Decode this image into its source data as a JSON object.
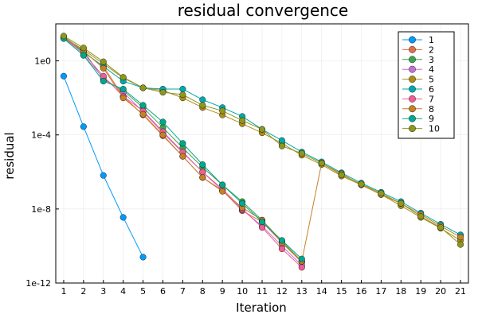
{
  "chart_data": {
    "type": "line",
    "title": "residual convergence",
    "xlabel": "Iteration",
    "ylabel": "residual",
    "yscale": "log",
    "xlim": [
      0.6,
      21.4
    ],
    "ylim": [
      1e-12,
      100.0
    ],
    "x_ticks": [
      "1",
      "2",
      "3",
      "4",
      "5",
      "6",
      "7",
      "8",
      "9",
      "10",
      "11",
      "12",
      "13",
      "14",
      "15",
      "16",
      "17",
      "18",
      "19",
      "20",
      "21"
    ],
    "y_ticks": [
      {
        "label": "1e-12",
        "value": 1e-12
      },
      {
        "label": "1e-8",
        "value": 1e-08
      },
      {
        "label": "1e-4",
        "value": 0.0001
      },
      {
        "label": "1e0",
        "value": 1
      }
    ],
    "grid": true,
    "legend_position": "top-right",
    "series": [
      {
        "name": "1",
        "color": "#009AFA",
        "x": [
          1,
          2,
          3,
          4,
          5
        ],
        "y": [
          0.15,
          0.00028,
          6.5e-07,
          3.5e-09,
          2.5e-11
        ]
      },
      {
        "name": "2",
        "color": "#E36F47",
        "x": [
          1,
          2,
          3,
          4,
          5,
          6,
          7,
          8,
          9,
          10,
          11,
          12,
          13
        ],
        "y": [
          18,
          3,
          0.5,
          0.012,
          0.0012,
          9e-05,
          7e-06,
          5e-07,
          1e-07,
          8e-09,
          2e-09,
          1.5e-10,
          1.3e-11
        ]
      },
      {
        "name": "3",
        "color": "#3EA44E",
        "x": [
          1,
          2,
          3,
          4,
          5,
          6,
          7,
          8,
          9,
          10,
          11,
          12,
          13
        ],
        "y": [
          20,
          3.5,
          0.1,
          0.025,
          0.003,
          0.00025,
          2e-05,
          1.8e-06,
          2e-07,
          2.5e-08,
          2.5e-09,
          1.8e-10,
          1.5e-11
        ]
      },
      {
        "name": "4",
        "color": "#C271D2",
        "x": [
          1,
          2,
          3,
          4,
          5,
          6,
          7,
          8,
          9,
          10,
          11,
          12,
          13
        ],
        "y": [
          17,
          2,
          0.12,
          0.02,
          0.0018,
          0.00013,
          1.1e-05,
          1e-06,
          1e-07,
          9e-09,
          1.2e-09,
          1e-10,
          9e-12
        ]
      },
      {
        "name": "5",
        "color": "#AC8D18",
        "x": [
          1,
          2,
          3,
          4,
          5,
          6,
          7,
          8,
          9,
          10,
          11,
          12,
          13,
          14,
          15,
          16,
          17,
          18,
          19,
          20,
          21
        ],
        "y": [
          18,
          4,
          0.7,
          0.12,
          0.035,
          0.025,
          0.01,
          0.003,
          0.0012,
          0.0004,
          0.00013,
          3.5e-05,
          8e-06,
          2.5e-06,
          6e-07,
          2e-07,
          6e-08,
          1.5e-08,
          3.5e-09,
          9e-10,
          2e-10
        ]
      },
      {
        "name": "6",
        "color": "#00A9AD",
        "x": [
          1,
          2,
          3,
          4,
          5,
          6,
          7,
          8,
          9,
          10,
          11,
          12,
          13,
          14,
          15,
          16,
          17,
          18,
          19,
          20,
          21
        ],
        "y": [
          17,
          3,
          0.5,
          0.08,
          0.035,
          0.03,
          0.03,
          0.008,
          0.003,
          0.001,
          0.0002,
          5e-05,
          1.2e-05,
          3.5e-06,
          9e-07,
          2.5e-07,
          8e-08,
          2.5e-08,
          6e-09,
          1.5e-09,
          4e-10
        ]
      },
      {
        "name": "7",
        "color": "#ED5E93",
        "x": [
          1,
          2,
          3,
          4,
          5,
          6,
          7,
          8,
          9,
          10,
          11,
          12,
          13
        ],
        "y": [
          19,
          2.5,
          0.15,
          0.012,
          0.002,
          0.00015,
          1.2e-05,
          1e-06,
          1.2e-07,
          1e-08,
          1e-09,
          7e-11,
          7e-12
        ]
      },
      {
        "name": "8",
        "color": "#C68125",
        "x": [
          1,
          2,
          3,
          4,
          5,
          6,
          7,
          8,
          9,
          10,
          11,
          12,
          13,
          14,
          15,
          16,
          17,
          18,
          19,
          20,
          21
        ],
        "y": [
          19,
          3.5,
          0.4,
          0.01,
          0.0013,
          0.0001,
          7e-06,
          5e-07,
          9e-08,
          1.2e-08,
          2.5e-09,
          1.5e-10,
          1.5e-11,
          3e-06,
          8e-07,
          2e-07,
          6e-08,
          2e-08,
          5e-09,
          1.2e-09,
          3e-10
        ]
      },
      {
        "name": "9",
        "color": "#00A98D",
        "x": [
          1,
          2,
          3,
          4,
          5,
          6,
          7,
          8,
          9,
          10,
          11,
          12,
          13
        ],
        "y": [
          16,
          2,
          0.08,
          0.03,
          0.004,
          0.0005,
          3.5e-05,
          2.5e-06,
          2e-07,
          2e-08,
          2e-09,
          2e-10,
          2e-11
        ]
      },
      {
        "name": "10",
        "color": "#8E971E",
        "x": [
          1,
          2,
          3,
          4,
          5,
          6,
          7,
          8,
          9,
          10,
          11,
          12,
          13,
          14,
          15,
          16,
          17,
          18,
          19,
          20,
          21
        ],
        "y": [
          22,
          5,
          0.9,
          0.13,
          0.035,
          0.02,
          0.015,
          0.004,
          0.002,
          0.0006,
          0.0002,
          2.5e-05,
          1e-05,
          3e-06,
          7e-07,
          2.2e-07,
          7e-08,
          2e-08,
          4e-09,
          1e-09,
          1.2e-10
        ]
      }
    ]
  }
}
